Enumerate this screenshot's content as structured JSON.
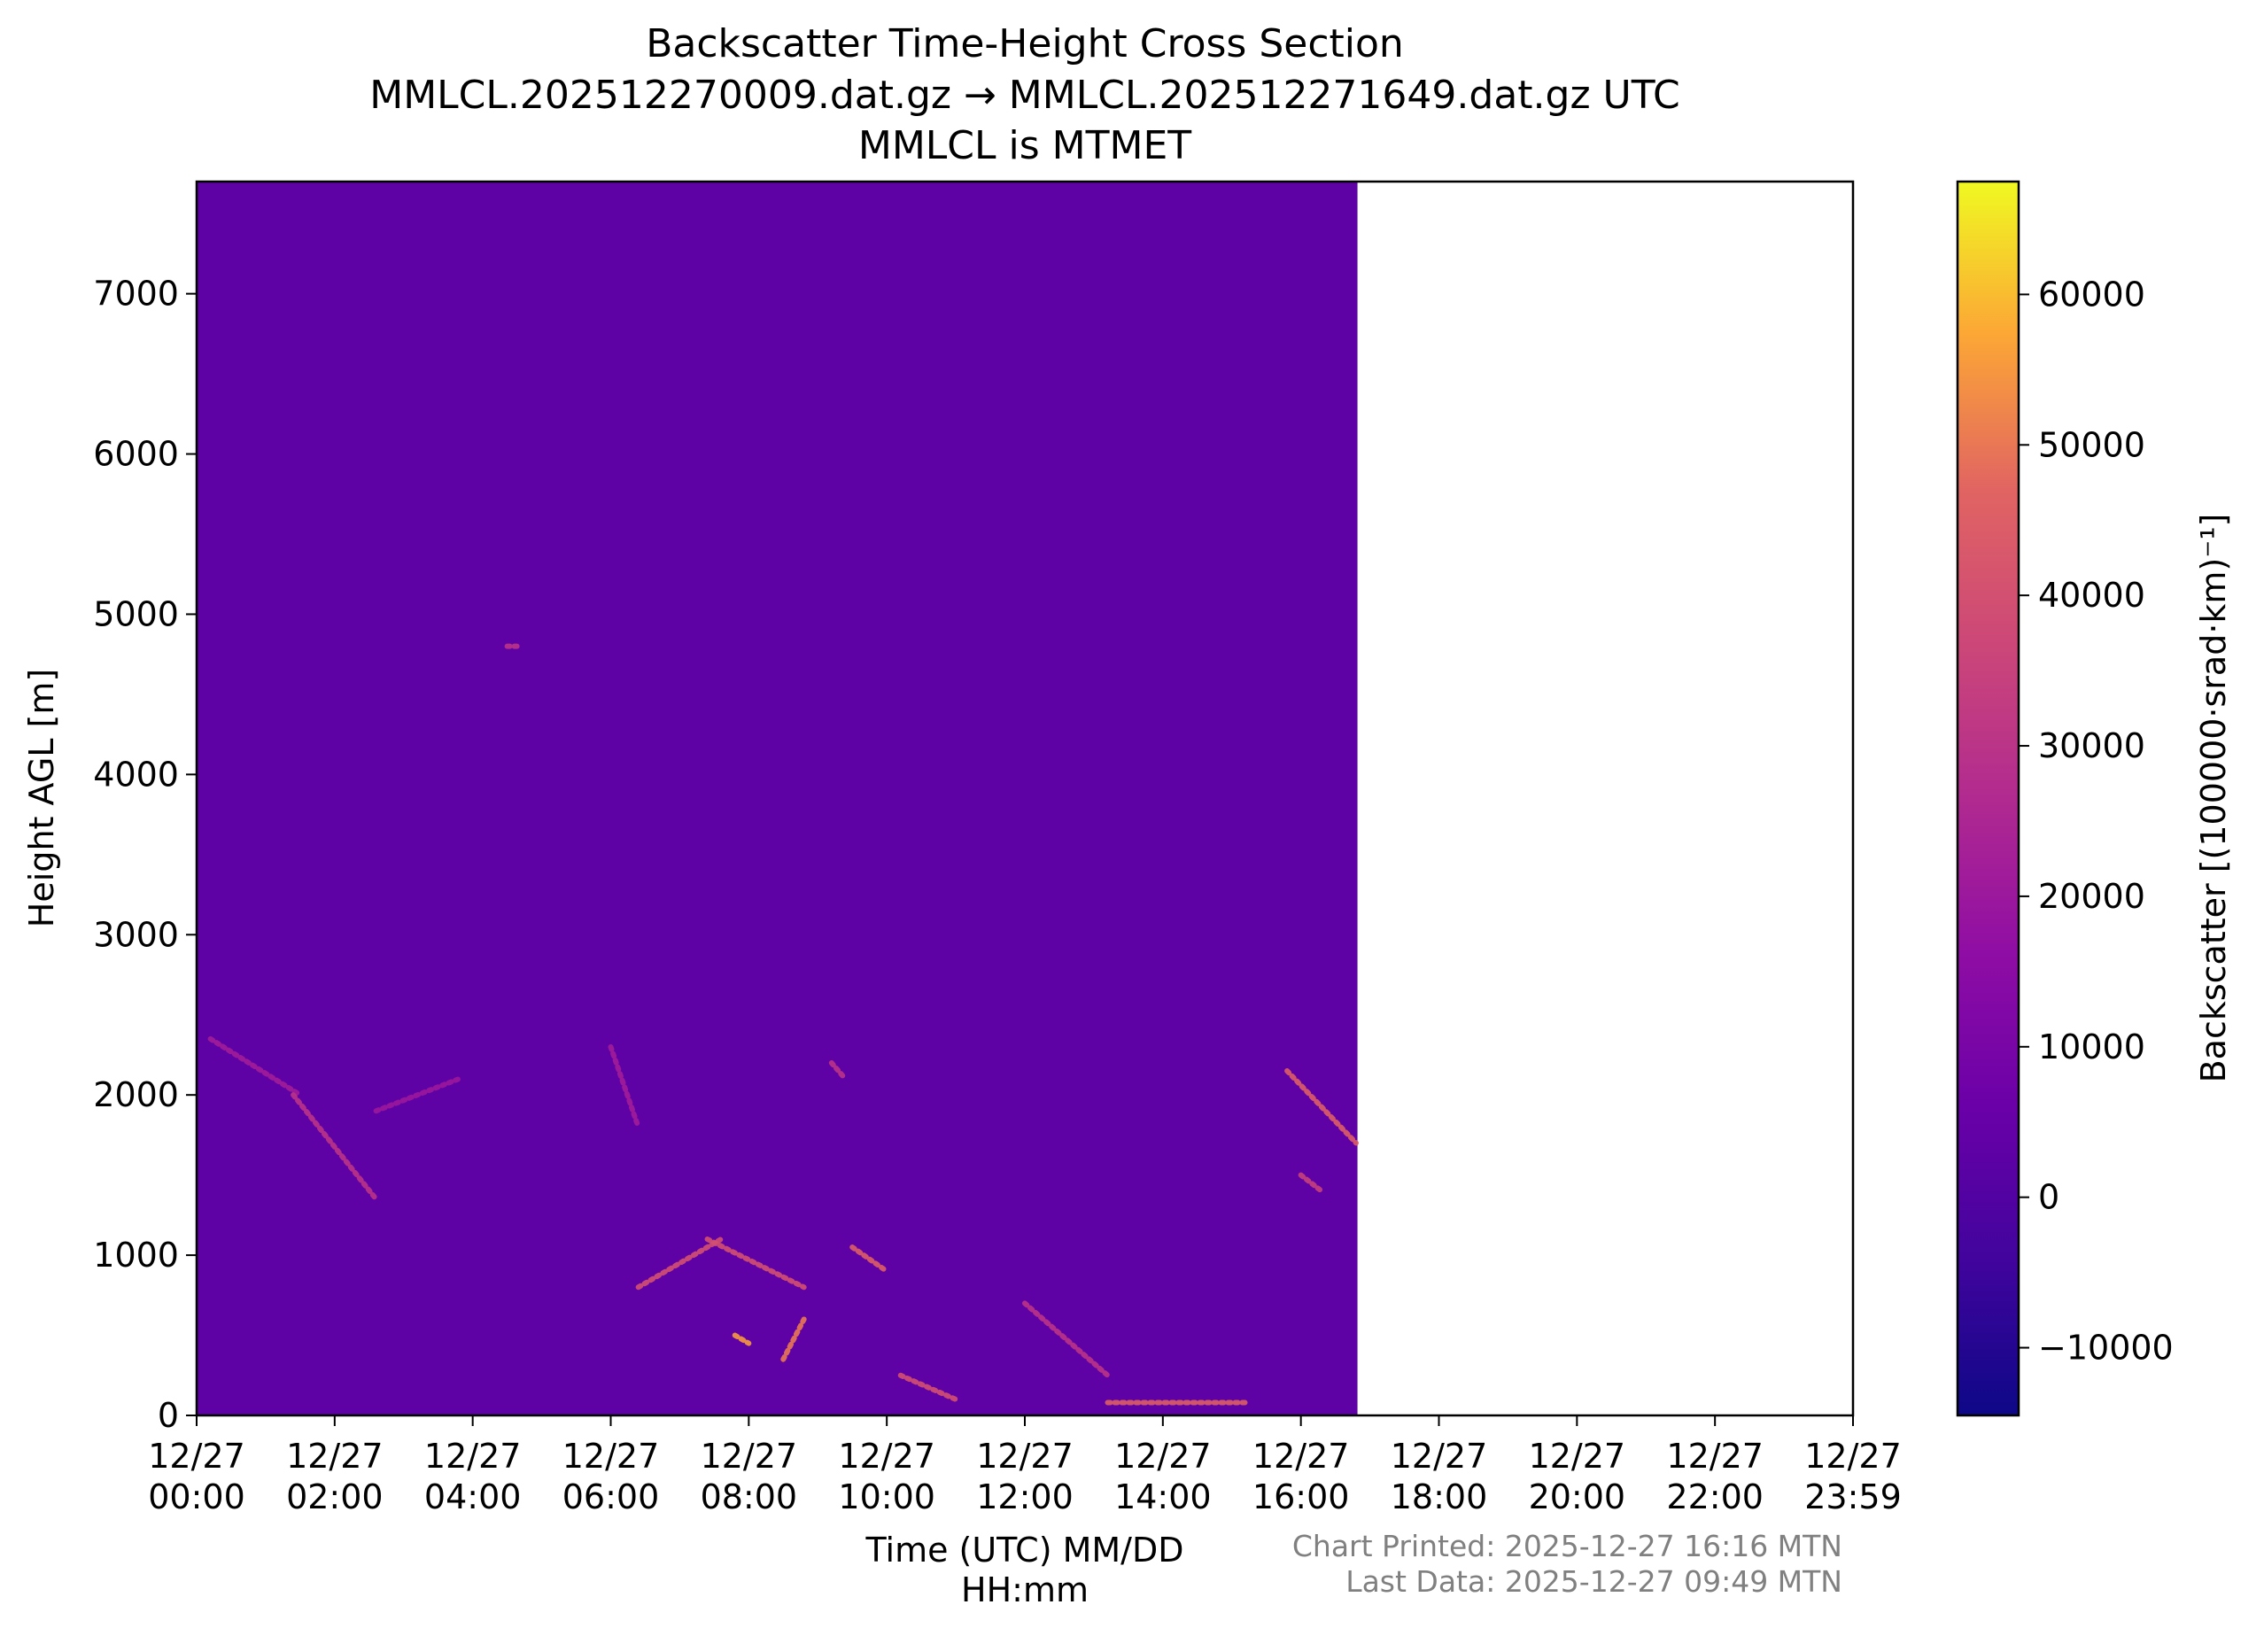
{
  "chart_data": {
    "type": "heatmap",
    "title_lines": [
      "Backscatter Time-Height Cross Section",
      "MMLCL.202512270009.dat.gz → MMLCL.202512271649.dat.gz UTC",
      "MMLCL is MTMET"
    ],
    "xlabel_lines": [
      "Time (UTC) MM/DD",
      "HH:mm"
    ],
    "ylabel": "Height AGL [m]",
    "colorbar_label": "Backscatter [(100000·srad·km)⁻¹]",
    "colormap": "plasma",
    "x_range_hours": [
      0,
      24
    ],
    "x_ticks": [
      {
        "hours": 0,
        "date": "12/27",
        "time": "00:00"
      },
      {
        "hours": 2,
        "date": "12/27",
        "time": "02:00"
      },
      {
        "hours": 4,
        "date": "12/27",
        "time": "04:00"
      },
      {
        "hours": 6,
        "date": "12/27",
        "time": "06:00"
      },
      {
        "hours": 8,
        "date": "12/27",
        "time": "08:00"
      },
      {
        "hours": 10,
        "date": "12/27",
        "time": "10:00"
      },
      {
        "hours": 12,
        "date": "12/27",
        "time": "12:00"
      },
      {
        "hours": 14,
        "date": "12/27",
        "time": "14:00"
      },
      {
        "hours": 16,
        "date": "12/27",
        "time": "16:00"
      },
      {
        "hours": 18,
        "date": "12/27",
        "time": "18:00"
      },
      {
        "hours": 20,
        "date": "12/27",
        "time": "20:00"
      },
      {
        "hours": 22,
        "date": "12/27",
        "time": "22:00"
      },
      {
        "hours": 24,
        "date": "12/27",
        "time": "23:59"
      }
    ],
    "y_range": [
      0,
      7700
    ],
    "y_ticks": [
      0,
      1000,
      2000,
      3000,
      4000,
      5000,
      6000,
      7000
    ],
    "colorbar_range": [
      -14500,
      67500
    ],
    "colorbar_ticks": [
      -10000,
      0,
      10000,
      20000,
      30000,
      40000,
      50000,
      60000
    ],
    "colorbar_tick_labels": [
      "−10000",
      "0",
      "10000",
      "20000",
      "30000",
      "40000",
      "50000",
      "60000"
    ],
    "background_value": 3000,
    "data_end_hours": 16.82,
    "features": [
      {
        "start_hours": 0.2,
        "end_hours": 1.5,
        "height_start_m": 2350,
        "height_end_m": 2000,
        "value": 22000
      },
      {
        "start_hours": 1.4,
        "end_hours": 2.6,
        "height_start_m": 2000,
        "height_end_m": 1350,
        "value": 30000
      },
      {
        "start_hours": 2.6,
        "end_hours": 3.8,
        "height_start_m": 1900,
        "height_end_m": 2100,
        "value": 20000
      },
      {
        "start_hours": 4.5,
        "end_hours": 4.7,
        "height_start_m": 4800,
        "height_end_m": 4800,
        "value": 30000
      },
      {
        "start_hours": 6.0,
        "end_hours": 6.4,
        "height_start_m": 2300,
        "height_end_m": 1800,
        "value": 22000
      },
      {
        "start_hours": 6.4,
        "end_hours": 7.6,
        "height_start_m": 800,
        "height_end_m": 1100,
        "value": 40000
      },
      {
        "start_hours": 7.4,
        "end_hours": 8.8,
        "height_start_m": 1100,
        "height_end_m": 800,
        "value": 40000
      },
      {
        "start_hours": 7.8,
        "end_hours": 8.0,
        "height_start_m": 500,
        "height_end_m": 450,
        "value": 55000
      },
      {
        "start_hours": 8.5,
        "end_hours": 8.8,
        "height_start_m": 350,
        "height_end_m": 600,
        "value": 50000
      },
      {
        "start_hours": 9.2,
        "end_hours": 9.4,
        "height_start_m": 2200,
        "height_end_m": 2100,
        "value": 30000
      },
      {
        "start_hours": 9.5,
        "end_hours": 10.0,
        "height_start_m": 1050,
        "height_end_m": 900,
        "value": 45000
      },
      {
        "start_hours": 10.2,
        "end_hours": 11.0,
        "height_start_m": 250,
        "height_end_m": 100,
        "value": 40000
      },
      {
        "start_hours": 12.0,
        "end_hours": 13.2,
        "height_start_m": 700,
        "height_end_m": 250,
        "value": 30000
      },
      {
        "start_hours": 13.2,
        "end_hours": 15.2,
        "height_start_m": 80,
        "height_end_m": 80,
        "value": 45000
      },
      {
        "start_hours": 15.8,
        "end_hours": 16.8,
        "height_start_m": 2150,
        "height_end_m": 1700,
        "value": 45000
      },
      {
        "start_hours": 16.0,
        "end_hours": 16.3,
        "height_start_m": 1500,
        "height_end_m": 1400,
        "value": 35000
      }
    ]
  },
  "footer": {
    "printed": "Chart Printed: 2025-12-27 16:16 MTN",
    "last_data": "Last Data: 2025-12-27 09:49 MTN"
  }
}
